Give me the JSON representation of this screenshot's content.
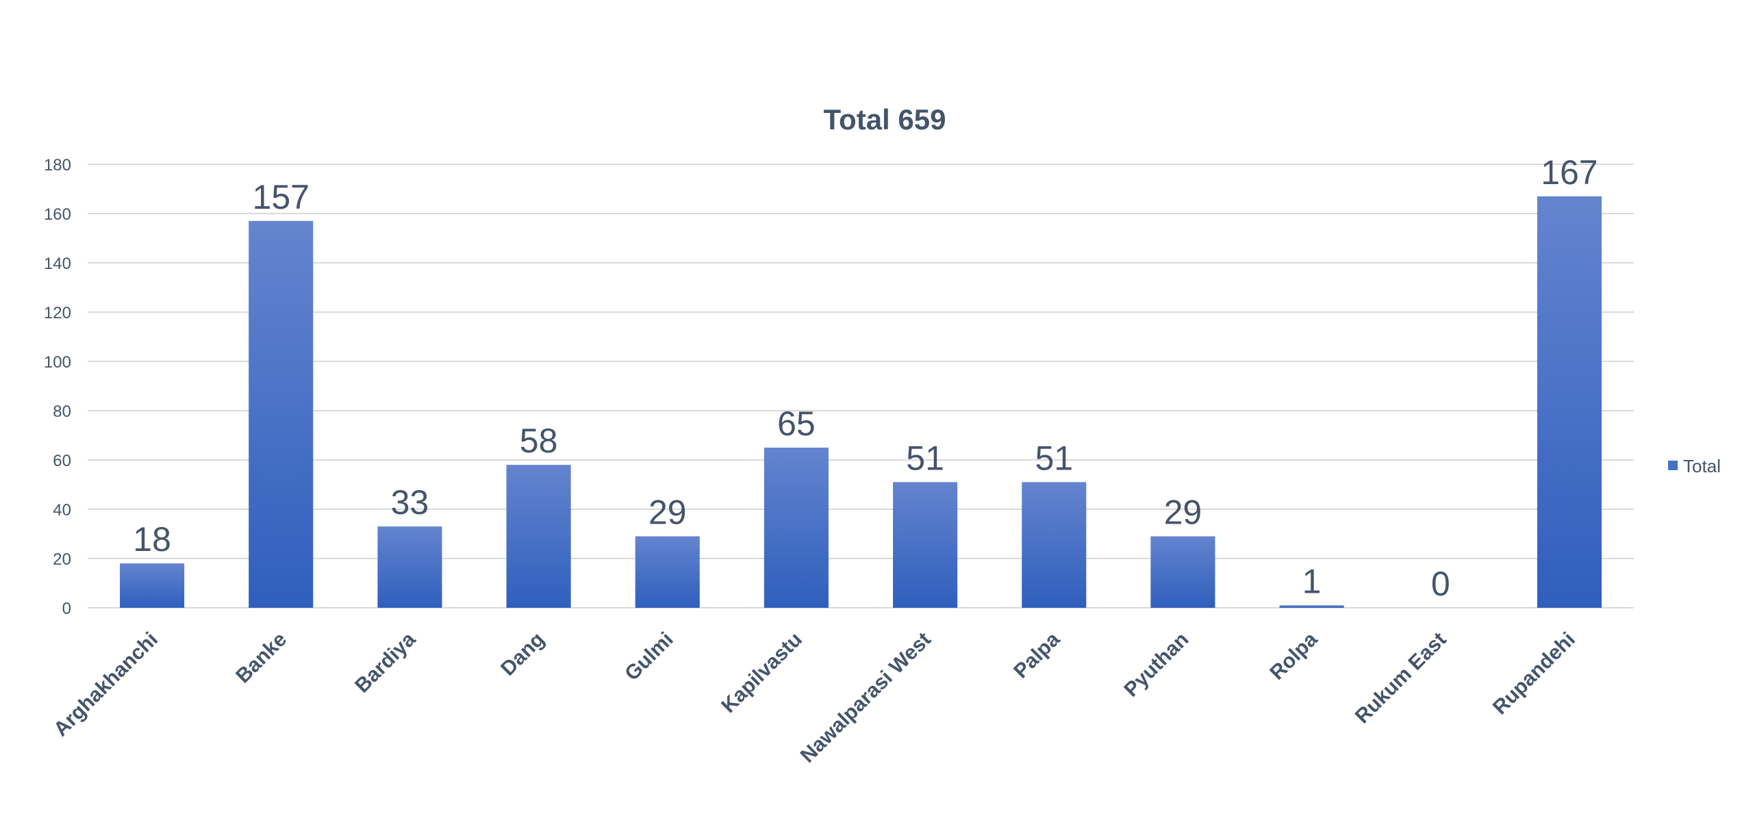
{
  "chart_data": {
    "type": "bar",
    "title": "Total 659",
    "categories": [
      "Arghakhanchi",
      "Banke",
      "Bardiya",
      "Dang",
      "Gulmi",
      "Kapilvastu",
      "Nawalparasi West",
      "Palpa",
      "Pyuthan",
      "Rolpa",
      "Rukum East",
      "Rupandehi"
    ],
    "series": [
      {
        "name": "Total",
        "values": [
          18,
          157,
          33,
          58,
          29,
          65,
          51,
          51,
          29,
          1,
          0,
          167
        ]
      }
    ],
    "ylim": [
      0,
      180
    ],
    "yticks": [
      0,
      20,
      40,
      60,
      80,
      100,
      120,
      140,
      160,
      180
    ],
    "xlabel": "",
    "ylabel": "",
    "grid": true,
    "legend": "right",
    "colors": {
      "bar_top": "#6484cf",
      "bar_bottom": "#2f5fbd",
      "text": "#44546a",
      "grid": "#d9d9d9",
      "legend_marker": "#4472c4"
    }
  }
}
